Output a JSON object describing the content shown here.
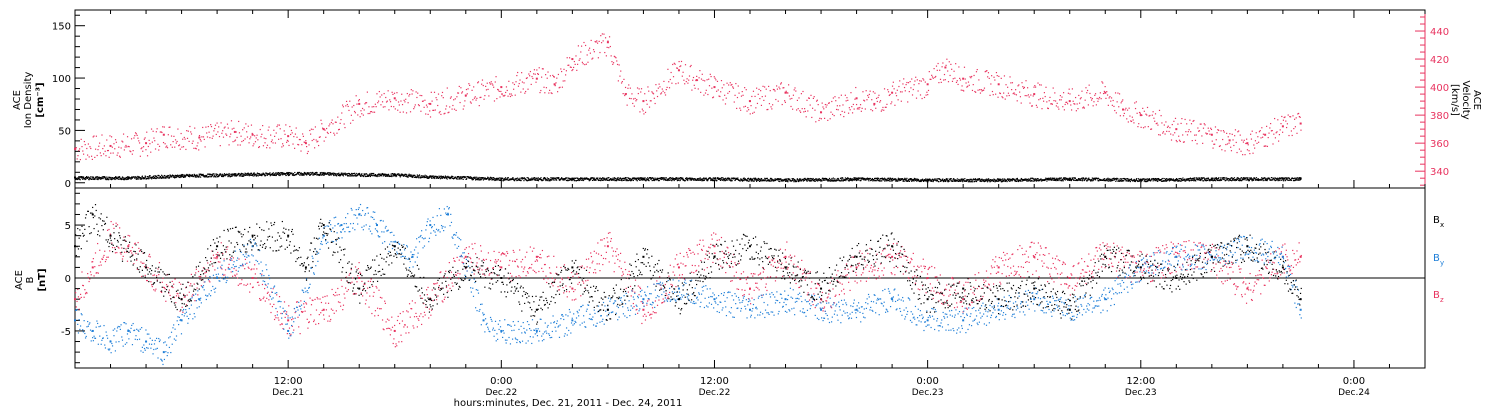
{
  "colors": {
    "density": "#000000",
    "velocity": "#e8335f",
    "bx": "#000000",
    "by": "#1f7fd8",
    "bz": "#e8335f"
  },
  "chart_data": [
    {
      "type": "scatter",
      "panel": "top",
      "left_ylabel": [
        "ACE",
        "Ion Density",
        "[cm⁻³]"
      ],
      "right_ylabel": [
        "ACE",
        "Velocity",
        "[km/s]"
      ],
      "left_ylim": [
        -5,
        165
      ],
      "left_yticks": [
        0,
        50,
        100,
        150
      ],
      "right_ylim": [
        328,
        455
      ],
      "right_yticks": [
        340,
        360,
        380,
        400,
        420,
        440
      ],
      "x_unit": "hours since 2011-12-21 00:00",
      "xlim": [
        0,
        76
      ],
      "series": [
        {
          "name": "Ion Density",
          "axis": "left",
          "x": [
            0,
            3,
            6,
            9,
            12,
            14,
            16,
            18,
            20,
            24,
            28,
            32,
            36,
            40,
            44,
            48,
            52,
            56,
            60,
            64,
            68,
            69
          ],
          "y": [
            5,
            5,
            7,
            8,
            9,
            9,
            8,
            8,
            6,
            4,
            4,
            4,
            4,
            3,
            4,
            3,
            3,
            4,
            3,
            4,
            4,
            4
          ]
        },
        {
          "name": "Velocity",
          "axis": "right",
          "x": [
            0,
            2,
            4,
            5,
            7,
            9,
            10,
            12,
            13,
            14,
            16,
            18,
            20,
            22,
            24,
            26,
            27,
            28,
            30,
            31,
            32,
            34,
            35,
            36,
            38,
            40,
            42,
            44,
            45,
            46,
            48,
            49,
            50,
            52,
            54,
            56,
            58,
            59,
            60,
            62,
            64,
            65,
            66,
            67,
            68,
            69
          ],
          "y": [
            356,
            358,
            360,
            366,
            364,
            368,
            366,
            365,
            360,
            370,
            388,
            392,
            388,
            394,
            400,
            406,
            402,
            420,
            432,
            395,
            390,
            412,
            405,
            400,
            390,
            396,
            382,
            392,
            388,
            396,
            402,
            414,
            406,
            402,
            395,
            390,
            396,
            384,
            380,
            370,
            366,
            362,
            360,
            366,
            372,
            374
          ]
        }
      ]
    },
    {
      "type": "scatter",
      "panel": "bottom",
      "ylabel": [
        "ACE",
        "B",
        "[nT]"
      ],
      "ylim": [
        -8.5,
        8.5
      ],
      "yticks": [
        -5,
        0,
        5
      ],
      "x_unit": "hours since 2011-12-21 00:00",
      "xlim": [
        0,
        76
      ],
      "xtick_labels": [
        {
          "x": 12,
          "time": "12:00",
          "date": "Dec.21"
        },
        {
          "x": 24,
          "time": "0:00",
          "date": "Dec.22"
        },
        {
          "x": 36,
          "time": "12:00",
          "date": "Dec.22"
        },
        {
          "x": 48,
          "time": "0:00",
          "date": "Dec.23"
        },
        {
          "x": 60,
          "time": "12:00",
          "date": "Dec.23"
        },
        {
          "x": 72,
          "time": "0:00",
          "date": "Dec.24"
        }
      ],
      "xlabel": "hours:minutes, Dec. 21, 2011 - Dec. 24, 2011",
      "series": [
        {
          "name": "Bx",
          "label_main": "B",
          "label_sub": "x",
          "x": [
            0,
            1,
            2,
            4,
            6,
            8,
            10,
            12,
            13,
            14,
            16,
            18,
            20,
            22,
            24,
            26,
            28,
            30,
            32,
            34,
            36,
            38,
            40,
            42,
            44,
            46,
            48,
            50,
            52,
            54,
            56,
            58,
            60,
            62,
            64,
            66,
            68,
            69
          ],
          "y": [
            3,
            6,
            4,
            1,
            -2,
            3,
            4,
            4,
            1,
            5,
            -1,
            3,
            -2,
            1,
            0,
            -3,
            1,
            -3,
            2,
            -2,
            2,
            3,
            1,
            -1,
            2,
            3,
            -2,
            -1,
            -2,
            -1,
            -3,
            2,
            1,
            0,
            2,
            3,
            1,
            -2
          ]
        },
        {
          "name": "By",
          "label_main": "B",
          "label_sub": "y",
          "x": [
            0,
            1,
            2,
            3,
            4,
            5,
            6,
            7,
            8,
            10,
            12,
            14,
            15,
            16,
            17,
            18,
            19,
            20,
            21,
            22,
            23,
            24,
            26,
            28,
            30,
            32,
            34,
            36,
            38,
            40,
            42,
            44,
            46,
            48,
            50,
            52,
            54,
            56,
            58,
            60,
            62,
            64,
            66,
            68,
            69
          ],
          "y": [
            -4,
            -5,
            -6,
            -5,
            -6,
            -7,
            -4,
            -2,
            0,
            3,
            -5,
            4,
            5,
            6,
            5,
            3,
            2,
            5,
            6,
            1,
            -4,
            -5,
            -5,
            -4,
            -3,
            -2,
            -1,
            -2,
            -3,
            -2,
            -3,
            -3,
            -2,
            -4,
            -4,
            -3,
            -2,
            -3,
            -2,
            1,
            2,
            2,
            3,
            2,
            -3
          ]
        },
        {
          "name": "Bz",
          "label_main": "B",
          "label_sub": "z",
          "x": [
            0,
            1,
            2,
            3,
            4,
            6,
            8,
            10,
            12,
            14,
            16,
            18,
            20,
            22,
            24,
            26,
            28,
            30,
            32,
            34,
            36,
            38,
            40,
            42,
            44,
            46,
            48,
            50,
            52,
            54,
            56,
            58,
            60,
            62,
            64,
            66,
            68,
            69
          ],
          "y": [
            -2,
            1,
            4,
            3,
            1,
            -2,
            2,
            0,
            -4,
            -3,
            0,
            -5,
            -2,
            2,
            1,
            2,
            -1,
            3,
            -3,
            1,
            3,
            -1,
            2,
            -2,
            1,
            2,
            0,
            -2,
            1,
            2,
            0,
            2,
            1,
            2,
            2,
            -1,
            2,
            2
          ]
        }
      ]
    }
  ]
}
